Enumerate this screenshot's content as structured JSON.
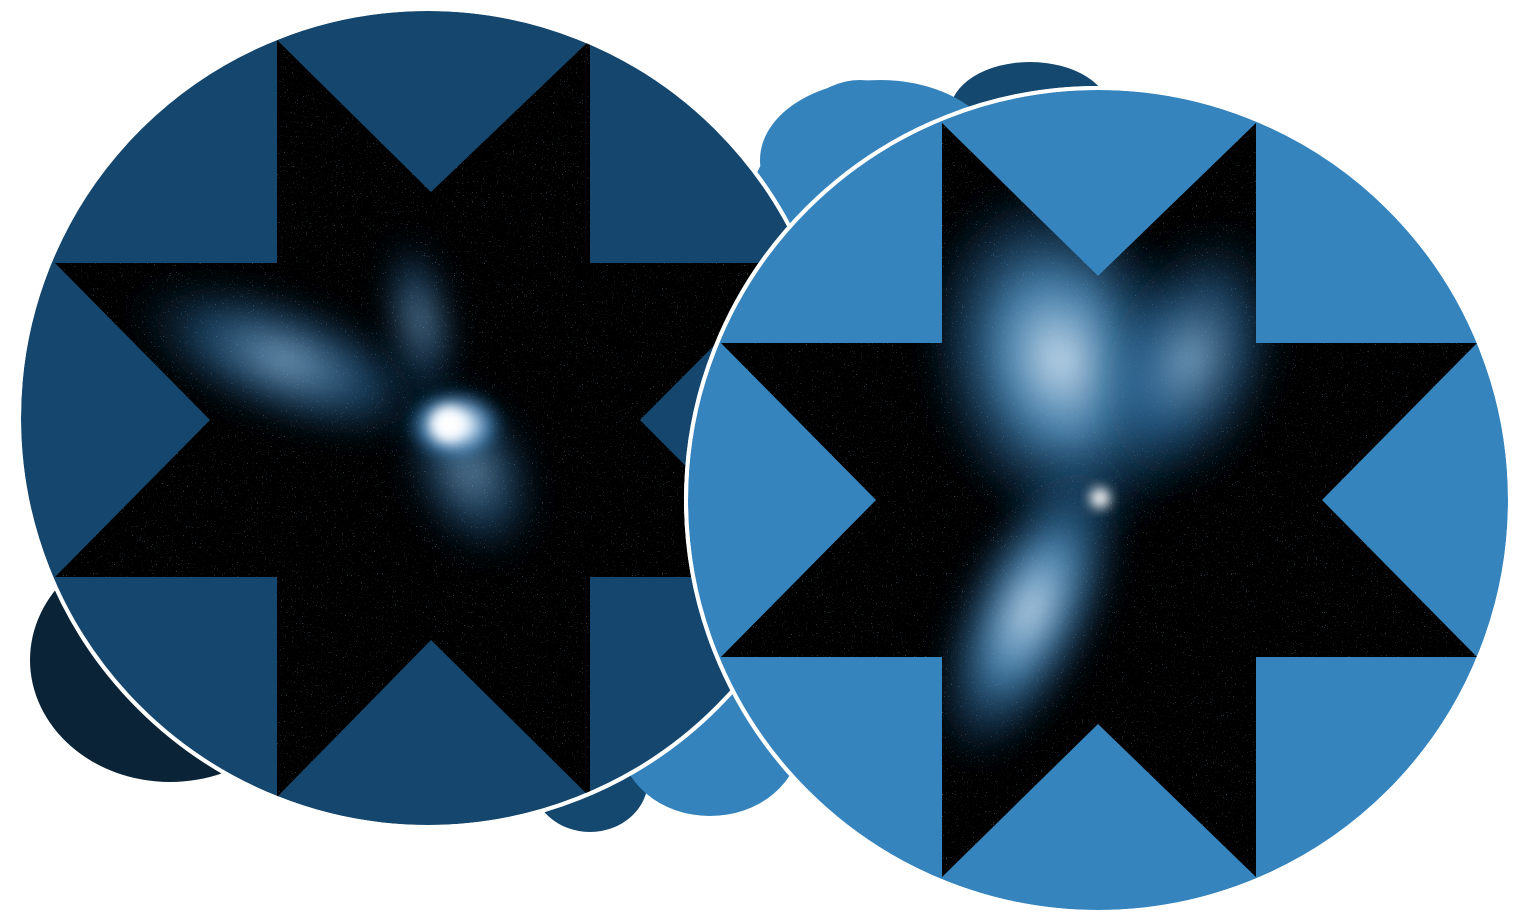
{
  "scene": {
    "description_free": true,
    "palette": {
      "background": "#ffffff",
      "left_disc": "#15476e",
      "right_disc": "#3684bd",
      "blob_dark": "#0b2336",
      "blob_mid": "#14486f",
      "blob_light": "#3583bd",
      "star_fill": "#000000",
      "glow_white": "#ffffff",
      "glow_blue": "#3a8fd0",
      "ring_stroke": "#ffffff"
    },
    "panels": [
      {
        "id": "left",
        "icon": "eight-point-star-mask",
        "glow_lobes": 3
      },
      {
        "id": "right",
        "icon": "eight-point-star-mask",
        "glow_lobes": 3
      }
    ]
  }
}
